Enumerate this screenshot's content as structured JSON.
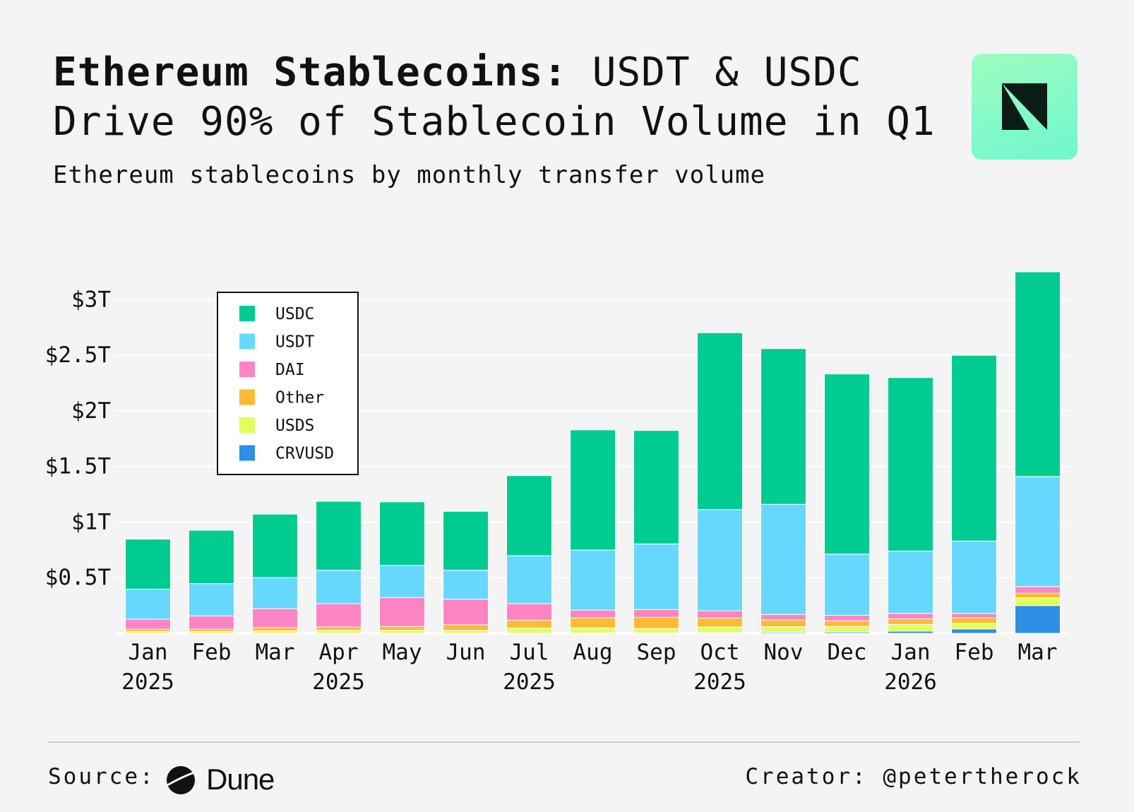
{
  "header": {
    "title_bold": "Ethereum Stablecoins:",
    "title_rest": " USDT & USDC Drive 90% of Stablecoin Volume in Q1",
    "subtitle": "Ethereum stablecoins by monthly transfer volume"
  },
  "footer": {
    "source_label": "Source:",
    "source_name": "Dune",
    "creator": "Creator: @petertherock"
  },
  "colors": {
    "USDC": "#00cc92",
    "USDT": "#67d8fd",
    "DAI": "#ff84c3",
    "Other": "#fdbb33",
    "USDS": "#e3fd5c",
    "CRVUSD": "#2d8fe5"
  },
  "chart_data": {
    "type": "bar",
    "stacked": true,
    "title": "Ethereum Stablecoins: USDT & USDC Drive 90% of Stablecoin Volume in Q1",
    "subtitle": "Ethereum stablecoins by monthly transfer volume",
    "xlabel": "",
    "ylabel": "",
    "ylim": [
      0,
      3.25
    ],
    "y_unit": "trillion USD",
    "yticks": [
      0.5,
      1,
      1.5,
      2,
      2.5,
      3
    ],
    "ytick_labels": [
      "$0.5T",
      "$1T",
      "$1.5T",
      "$2T",
      "$2.5T",
      "$3T"
    ],
    "grid": true,
    "legend_position": "top-left",
    "categories": [
      "Jan 2025",
      "Feb 2025",
      "Mar 2025",
      "Apr 2025",
      "May 2025",
      "Jun 2025",
      "Jul 2025",
      "Aug 2025",
      "Sep 2025",
      "Oct 2025",
      "Nov 2025",
      "Dec 2025",
      "Jan 2026",
      "Feb 2026",
      "Mar 2026"
    ],
    "tick_labels": [
      {
        "month": "Jan",
        "year": "2025"
      },
      {
        "month": "Feb",
        "year": ""
      },
      {
        "month": "Mar",
        "year": ""
      },
      {
        "month": "Apr",
        "year": "2025"
      },
      {
        "month": "May",
        "year": ""
      },
      {
        "month": "Jun",
        "year": ""
      },
      {
        "month": "Jul",
        "year": "2025"
      },
      {
        "month": "Aug",
        "year": ""
      },
      {
        "month": "Sep",
        "year": ""
      },
      {
        "month": "Oct",
        "year": "2025"
      },
      {
        "month": "Nov",
        "year": ""
      },
      {
        "month": "Dec",
        "year": ""
      },
      {
        "month": "Jan",
        "year": "2026"
      },
      {
        "month": "Feb",
        "year": ""
      },
      {
        "month": "Mar",
        "year": ""
      }
    ],
    "series": [
      {
        "name": "CRVUSD",
        "values": [
          0.002,
          0.002,
          0.002,
          0.002,
          0.002,
          0.002,
          0.003,
          0.004,
          0.004,
          0.008,
          0.01,
          0.012,
          0.02,
          0.04,
          0.25
        ]
      },
      {
        "name": "USDS",
        "values": [
          0.015,
          0.015,
          0.02,
          0.025,
          0.025,
          0.025,
          0.045,
          0.045,
          0.04,
          0.05,
          0.05,
          0.05,
          0.06,
          0.05,
          0.07
        ]
      },
      {
        "name": "Other",
        "values": [
          0.02,
          0.02,
          0.03,
          0.03,
          0.035,
          0.05,
          0.07,
          0.09,
          0.1,
          0.08,
          0.06,
          0.05,
          0.05,
          0.05,
          0.04
        ]
      },
      {
        "name": "DAI",
        "values": [
          0.09,
          0.12,
          0.17,
          0.21,
          0.26,
          0.23,
          0.15,
          0.07,
          0.07,
          0.065,
          0.05,
          0.05,
          0.05,
          0.04,
          0.06
        ]
      },
      {
        "name": "USDT",
        "values": [
          0.27,
          0.29,
          0.28,
          0.3,
          0.29,
          0.26,
          0.43,
          0.54,
          0.59,
          0.91,
          0.99,
          0.55,
          0.56,
          0.65,
          0.99
        ]
      },
      {
        "name": "USDC",
        "values": [
          0.45,
          0.48,
          0.57,
          0.62,
          0.57,
          0.53,
          0.72,
          1.08,
          1.02,
          1.59,
          1.4,
          1.62,
          1.56,
          1.67,
          1.84
        ]
      }
    ],
    "legend_order": [
      "USDC",
      "USDT",
      "DAI",
      "Other",
      "USDS",
      "CRVUSD"
    ]
  }
}
